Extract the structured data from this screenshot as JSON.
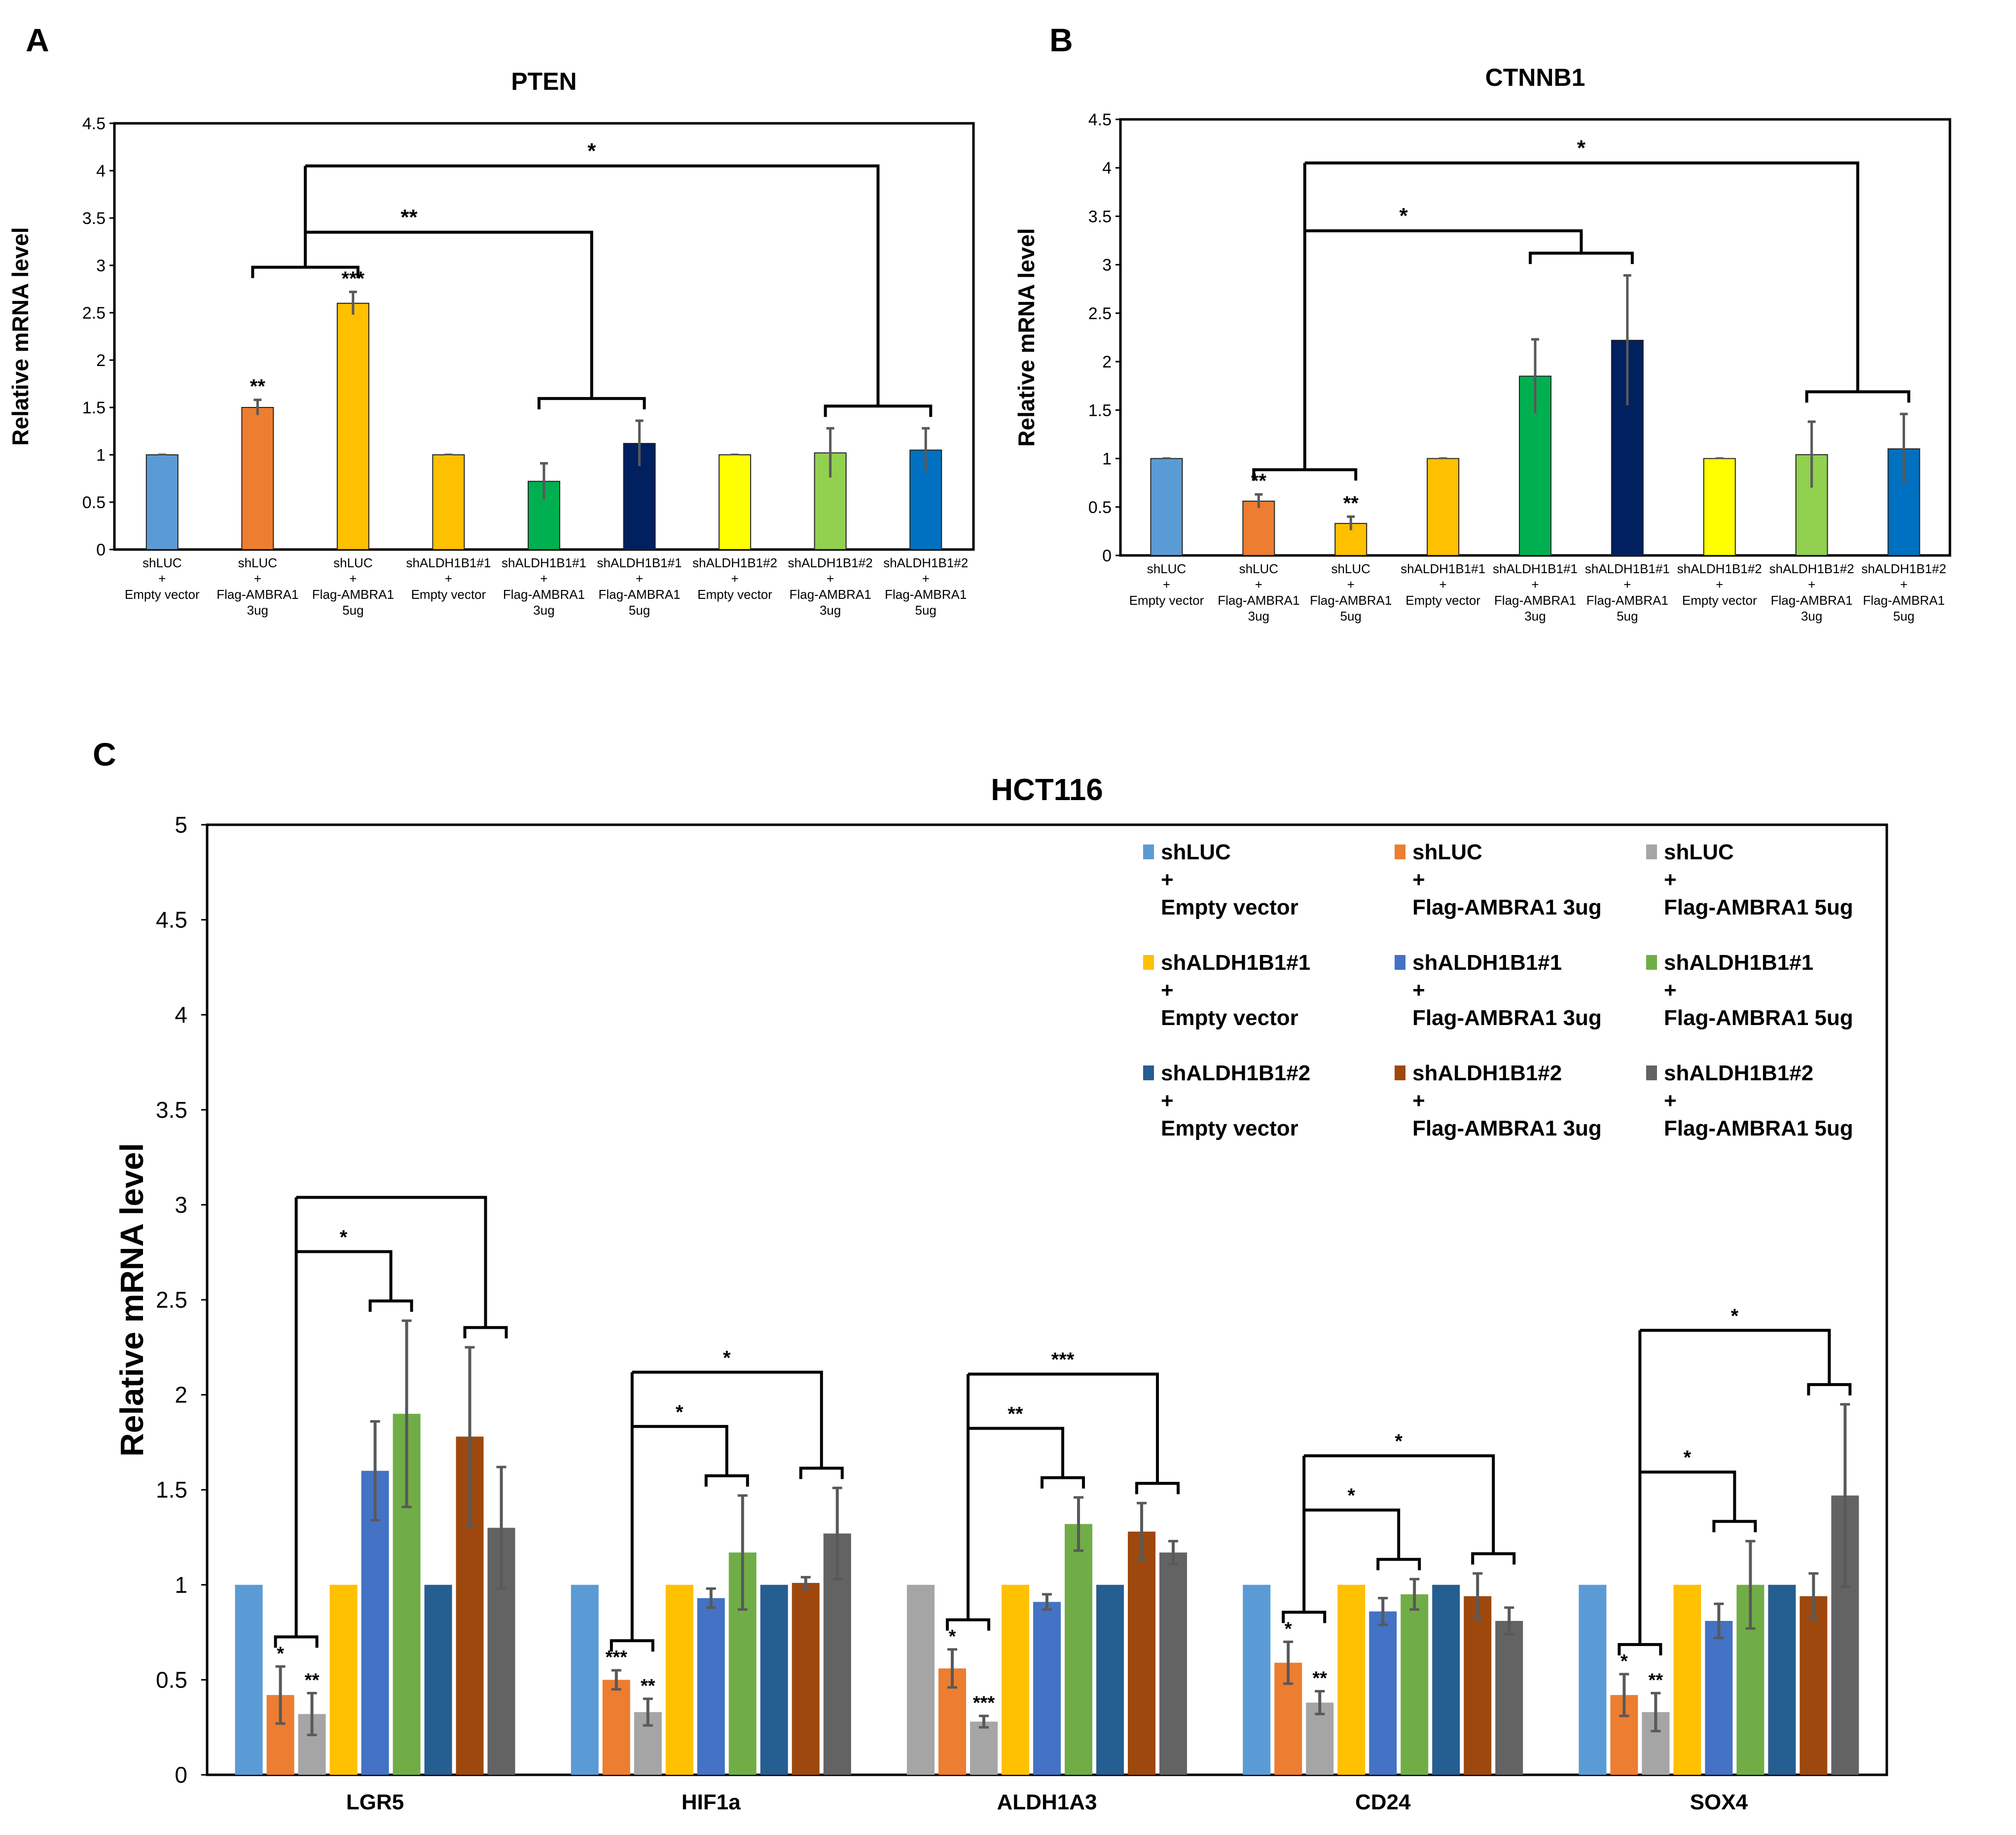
{
  "figure": {
    "panels": [
      "A",
      "B",
      "C"
    ]
  },
  "chart_data": [
    {
      "panel": "A",
      "type": "bar",
      "title": "PTEN",
      "ylabel": "Relative mRNA level",
      "ylim": [
        0,
        4.5
      ],
      "yticks": [
        "0",
        "0.5",
        "1",
        "1.5",
        "2",
        "2.5",
        "3",
        "3.5",
        "4",
        "4.5"
      ],
      "categories": [
        [
          "shLUC",
          "+",
          "Empty vector"
        ],
        [
          "shLUC",
          "+",
          "Flag-AMBRA1",
          "3ug"
        ],
        [
          "shLUC",
          "+",
          "Flag-AMBRA1",
          "5ug"
        ],
        [
          "shALDH1B1#1",
          "+",
          "Empty vector"
        ],
        [
          "shALDH1B1#1",
          "+",
          "Flag-AMBRA1",
          "3ug"
        ],
        [
          "shALDH1B1#1",
          "+",
          "Flag-AMBRA1",
          "5ug"
        ],
        [
          "shALDH1B1#2",
          "+",
          "Empty vector"
        ],
        [
          "shALDH1B1#2",
          "+",
          "Flag-AMBRA1",
          "3ug"
        ],
        [
          "shALDH1B1#2",
          "+",
          "Flag-AMBRA1",
          "5ug"
        ]
      ],
      "values": [
        1.0,
        1.5,
        2.6,
        1.0,
        0.72,
        1.12,
        1.0,
        1.02,
        1.05
      ],
      "errors": [
        0,
        0.08,
        0.12,
        0,
        0.19,
        0.24,
        0,
        0.26,
        0.23
      ],
      "colors": [
        "#5b9bd5",
        "#ed7d31",
        "#ffc000",
        "#ffc000",
        "#00b050",
        "#002060",
        "#ffff00",
        "#92d050",
        "#0070c0"
      ],
      "bar_annotations": [
        "",
        "**",
        "***",
        "",
        "",
        "",
        "",
        "",
        ""
      ],
      "comparisons": [
        {
          "label": "**",
          "groupA": [
            1,
            2
          ],
          "groupB": [
            4,
            5
          ]
        },
        {
          "label": "*",
          "groupA": [
            1,
            2
          ],
          "groupB": [
            7,
            8
          ]
        }
      ]
    },
    {
      "panel": "B",
      "type": "bar",
      "title": "CTNNB1",
      "ylabel": "Relative mRNA level",
      "ylim": [
        0,
        4.5
      ],
      "yticks": [
        "0",
        "0.5",
        "1",
        "1.5",
        "2",
        "2.5",
        "3",
        "3.5",
        "4",
        "4.5"
      ],
      "categories": [
        [
          "shLUC",
          "+",
          "Empty vector"
        ],
        [
          "shLUC",
          "+",
          "Flag-AMBRA1",
          "3ug"
        ],
        [
          "shLUC",
          "+",
          "Flag-AMBRA1",
          "5ug"
        ],
        [
          "shALDH1B1#1",
          "+",
          "Empty vector"
        ],
        [
          "shALDH1B1#1",
          "+",
          "Flag-AMBRA1",
          "3ug"
        ],
        [
          "shALDH1B1#1",
          "+",
          "Flag-AMBRA1",
          "5ug"
        ],
        [
          "shALDH1B1#2",
          "+",
          "Empty vector"
        ],
        [
          "shALDH1B1#2",
          "+",
          "Flag-AMBRA1",
          "3ug"
        ],
        [
          "shALDH1B1#2",
          "+",
          "Flag-AMBRA1",
          "5ug"
        ]
      ],
      "values": [
        1.0,
        0.56,
        0.33,
        1.0,
        1.85,
        2.22,
        1.0,
        1.04,
        1.1
      ],
      "errors": [
        0,
        0.07,
        0.07,
        0,
        0.38,
        0.67,
        0,
        0.34,
        0.36
      ],
      "colors": [
        "#5b9bd5",
        "#ed7d31",
        "#ffc000",
        "#ffc000",
        "#00b050",
        "#002060",
        "#ffff00",
        "#92d050",
        "#0070c0"
      ],
      "bar_annotations": [
        "",
        "**",
        "**",
        "",
        "",
        "",
        "",
        "",
        ""
      ],
      "comparisons": [
        {
          "label": "*",
          "groupA": [
            1,
            2
          ],
          "groupB": [
            4,
            5
          ]
        },
        {
          "label": "*",
          "groupA": [
            1,
            2
          ],
          "groupB": [
            7,
            8
          ]
        }
      ]
    },
    {
      "panel": "C",
      "type": "bar",
      "title": "HCT116",
      "ylabel": "Relative mRNA level",
      "ylim": [
        0,
        5
      ],
      "yticks": [
        "0",
        "0.5",
        "1",
        "1.5",
        "2",
        "2.5",
        "3",
        "3.5",
        "4",
        "4.5",
        "5"
      ],
      "categories": [
        "LGR5",
        "HIF1a",
        "ALDH1A3",
        "CD24",
        "SOX4"
      ],
      "series": [
        {
          "name": [
            "shLUC",
            "+",
            "Empty vector"
          ],
          "color": "#5b9bd5",
          "values": [
            1.0,
            1.0,
            1.0,
            1.0,
            1.0
          ],
          "errors": [
            0,
            0,
            0,
            0,
            0
          ]
        },
        {
          "name": [
            "shLUC",
            "+",
            "Flag-AMBRA1 3ug"
          ],
          "color": "#ed7d31",
          "values": [
            0.42,
            0.5,
            0.56,
            0.59,
            0.42
          ],
          "errors": [
            0.15,
            0.05,
            0.1,
            0.11,
            0.11
          ]
        },
        {
          "name": [
            "shLUC",
            "+",
            "Flag-AMBRA1 5ug"
          ],
          "color": "#a5a5a5",
          "values": [
            0.32,
            0.33,
            0.28,
            0.38,
            0.33
          ],
          "errors": [
            0.11,
            0.07,
            0.03,
            0.06,
            0.1
          ]
        },
        {
          "name": [
            "shALDH1B1#1",
            "+",
            "Empty vector"
          ],
          "color": "#ffc000",
          "values": [
            1.0,
            1.0,
            1.0,
            1.0,
            1.0
          ],
          "errors": [
            0,
            0,
            0,
            0,
            0
          ]
        },
        {
          "name": [
            "shALDH1B1#1",
            "+",
            "Flag-AMBRA1 3ug"
          ],
          "color": "#4472c4",
          "values": [
            1.6,
            0.93,
            0.91,
            0.86,
            0.81
          ],
          "errors": [
            0.26,
            0.05,
            0.04,
            0.07,
            0.09
          ]
        },
        {
          "name": [
            "shALDH1B1#1",
            "+",
            "Flag-AMBRA1 5ug"
          ],
          "color": "#70ad47",
          "values": [
            1.9,
            1.17,
            1.32,
            0.95,
            1.0
          ],
          "errors": [
            0.49,
            0.3,
            0.14,
            0.08,
            0.23
          ]
        },
        {
          "name": [
            "shALDH1B1#2",
            "+",
            "Empty vector"
          ],
          "color": "#255e91",
          "values": [
            1.0,
            1.0,
            1.0,
            1.0,
            1.0
          ],
          "errors": [
            0,
            0,
            0,
            0,
            0
          ]
        },
        {
          "name": [
            "shALDH1B1#2",
            "+",
            "Flag-AMBRA1 3ug"
          ],
          "color": "#9e480e",
          "values": [
            1.78,
            1.01,
            1.28,
            0.94,
            0.94
          ],
          "errors": [
            0.47,
            0.03,
            0.15,
            0.12,
            0.12
          ]
        },
        {
          "name": [
            "shALDH1B1#2",
            "+",
            "Flag-AMBRA1 5ug"
          ],
          "color": "#636363",
          "values": [
            1.3,
            1.27,
            1.17,
            0.81,
            1.47
          ],
          "errors": [
            0.32,
            0.24,
            0.06,
            0.07,
            0.48
          ]
        }
      ],
      "first_bar_override": {
        "category": 2,
        "color": "#a5a5a5"
      },
      "bar_annotations": {
        "series1": [
          "*",
          "***",
          "*",
          "*",
          "*"
        ],
        "series2": [
          "**",
          "**",
          "***",
          "**",
          "**"
        ]
      },
      "comparisons": [
        {
          "category": 0,
          "inner_label": "*",
          "outer_label": ""
        },
        {
          "category": 1,
          "inner_label": "*",
          "outer_label": "*"
        },
        {
          "category": 2,
          "inner_label": "**",
          "outer_label": "***"
        },
        {
          "category": 3,
          "inner_label": "*",
          "outer_label": "*"
        },
        {
          "category": 4,
          "inner_label": "*",
          "outer_label": "*"
        }
      ]
    }
  ]
}
